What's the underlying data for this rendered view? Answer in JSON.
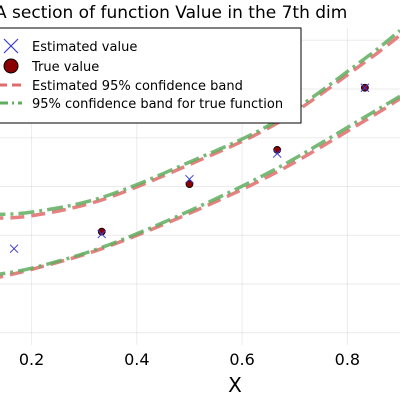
{
  "chart_data": {
    "type": "scatter",
    "title": "A section of function Value in the 7th dim",
    "xlabel": "X",
    "ylabel": "",
    "xlim": [
      0.14,
      0.9
    ],
    "ylim": [
      -0.15,
      1.15
    ],
    "x_ticks": [
      0.2,
      0.4,
      0.6,
      0.8
    ],
    "x_tick_labels": [
      "0.2",
      "0.4",
      "0.6",
      "0.8"
    ],
    "grid": true,
    "legend_position": "top-left",
    "series": [
      {
        "name": "Estimated value",
        "kind": "marker-x",
        "color": "#3b3bd6",
        "x": [
          0.1667,
          0.3333,
          0.5,
          0.6667,
          0.8333
        ],
        "y": [
          0.245,
          0.305,
          0.53,
          0.635,
          0.905
        ]
      },
      {
        "name": "True value",
        "kind": "marker-circle",
        "color": "#8b0000",
        "x": [
          0.3333,
          0.5,
          0.6667,
          0.8333
        ],
        "y": [
          0.315,
          0.51,
          0.65,
          0.905
        ]
      },
      {
        "name": "Estimated 95% confidence band",
        "kind": "dashed-line",
        "color": "#e06b6b",
        "upper": {
          "x": [
            0.12,
            0.2,
            0.3333,
            0.5,
            0.6667,
            0.8333,
            0.9
          ],
          "y": [
            0.37,
            0.38,
            0.445,
            0.59,
            0.76,
            1.01,
            1.12
          ]
        },
        "lower": {
          "x": [
            0.12,
            0.2,
            0.3333,
            0.5,
            0.6667,
            0.8333,
            0.9
          ],
          "y": [
            0.12,
            0.16,
            0.245,
            0.39,
            0.56,
            0.77,
            0.86
          ]
        }
      },
      {
        "name": "95% confidence band for true function",
        "kind": "dashdot-line",
        "color": "#5fae5f",
        "upper": {
          "x": [
            0.12,
            0.2,
            0.3333,
            0.5,
            0.6667,
            0.8333,
            0.9
          ],
          "y": [
            0.385,
            0.395,
            0.455,
            0.6,
            0.77,
            1.025,
            1.14
          ]
        },
        "lower": {
          "x": [
            0.12,
            0.2,
            0.3333,
            0.5,
            0.6667,
            0.8333,
            0.9
          ],
          "y": [
            0.135,
            0.165,
            0.25,
            0.4,
            0.575,
            0.785,
            0.87
          ]
        }
      }
    ]
  }
}
